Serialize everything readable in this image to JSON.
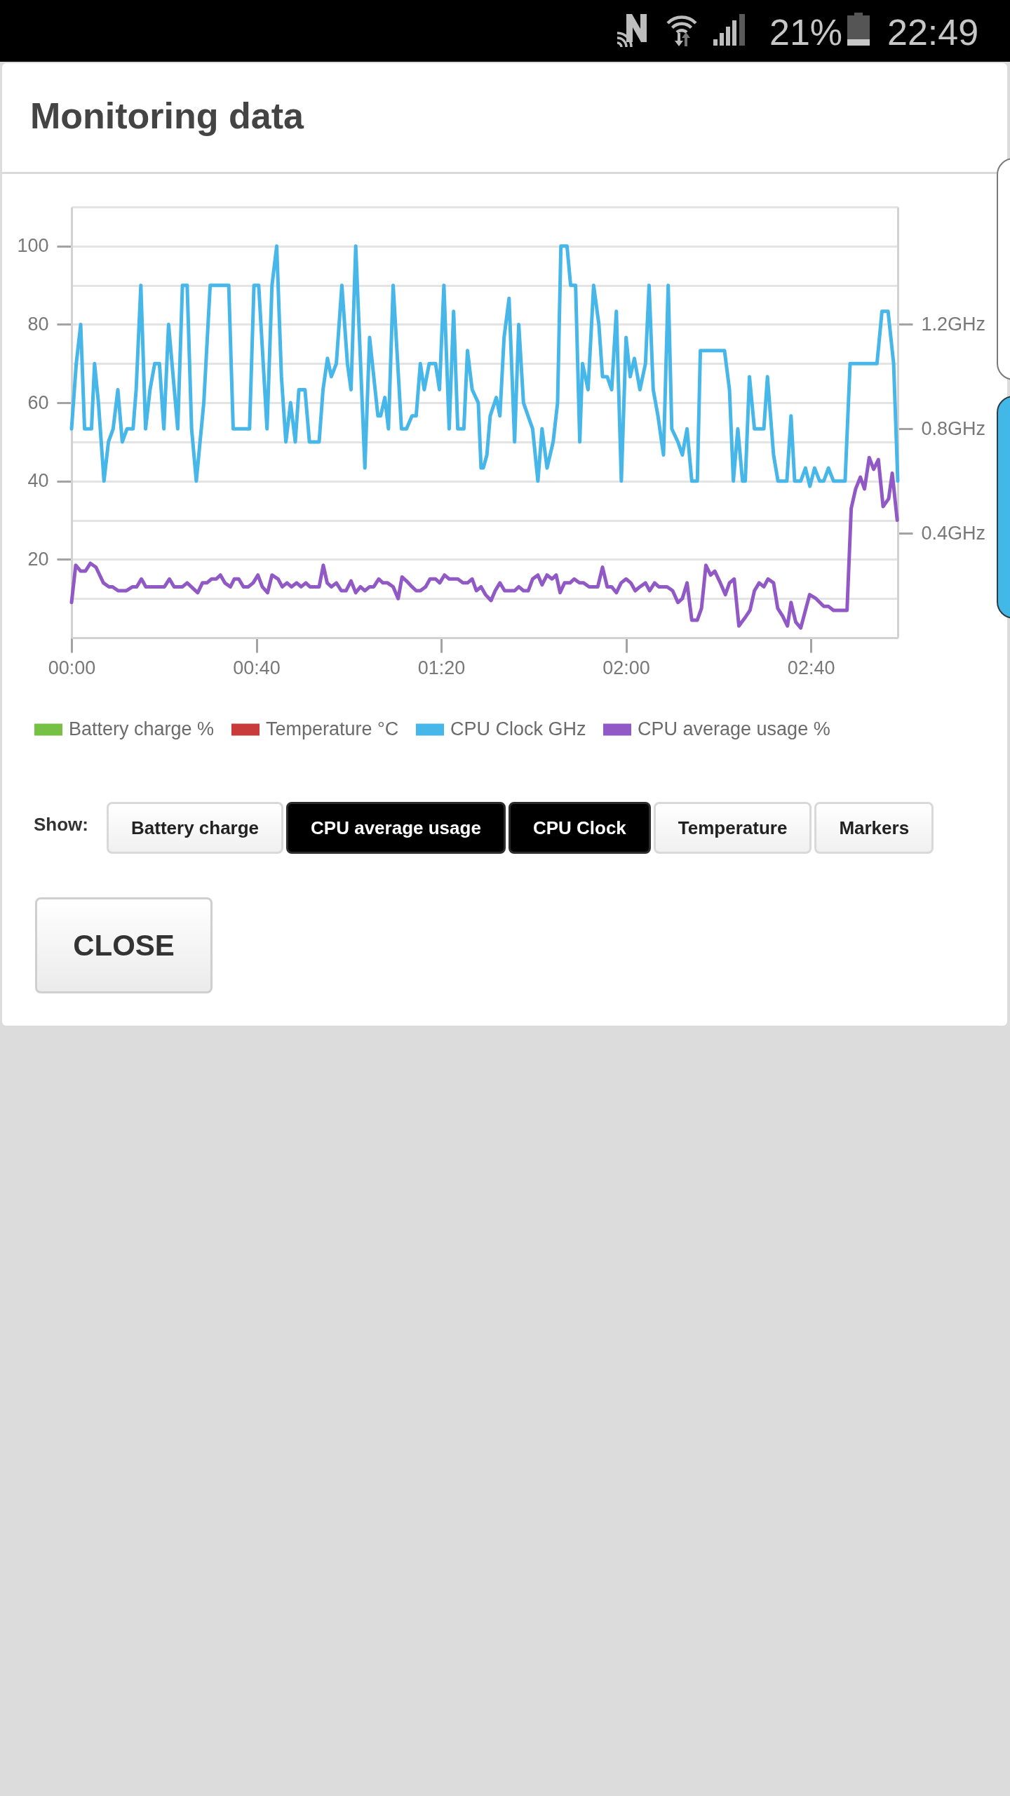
{
  "chart_data": {
    "type": "line",
    "title": "Monitoring data",
    "annotations": [
      "21%",
      "22:49",
      "Show:",
      "Battery charge",
      "CPU average usage",
      "CPU Clock",
      "Temperature",
      "Markers",
      "CLOSE"
    ],
    "xlim": [
      0,
      2.98
    ],
    "xticks": [
      {
        "value": 0,
        "label": "00:00"
      },
      {
        "value": 0.6667,
        "label": "00:40"
      },
      {
        "value": 1.3333,
        "label": "01:20"
      },
      {
        "value": 2,
        "label": "02:00"
      },
      {
        "value": 2.6667,
        "label": "02:40"
      }
    ],
    "ylim": [
      0,
      110
    ],
    "yticks": [
      {
        "value": 10,
        "label": null
      },
      20,
      {
        "value": 30,
        "label": null
      },
      40,
      {
        "value": 50,
        "label": null
      },
      60,
      {
        "value": 70,
        "label": null
      },
      80,
      {
        "value": 90,
        "label": null
      },
      100,
      {
        "value": 110,
        "label": null
      }
    ],
    "y2lim": [
      0,
      1.65
    ],
    "y2ticks": [
      {
        "value": 0.4,
        "label": "0.4GHz"
      },
      {
        "value": 0.8,
        "label": "0.8GHz"
      },
      {
        "value": 1.2,
        "label": "1.2GHz"
      }
    ],
    "grid": "y",
    "legend": "bottom",
    "series": [
      {
        "name": "Battery charge %",
        "color": "#76c043"
      },
      {
        "name": "Temperature °C",
        "color": "#c93a3a"
      },
      {
        "name": "CPU Clock GHz",
        "color": "#47b6e8",
        "axis": "y2",
        "x": [
          0,
          0.017,
          0.033,
          0.047,
          0.072,
          0.083,
          0.097,
          0.117,
          0.133,
          0.15,
          0.167,
          0.183,
          0.2,
          0.222,
          0.233,
          0.25,
          0.267,
          0.283,
          0.3,
          0.317,
          0.333,
          0.35,
          0.383,
          0.4,
          0.417,
          0.433,
          0.45,
          0.477,
          0.5,
          0.567,
          0.583,
          0.642,
          0.658,
          0.675,
          0.705,
          0.723,
          0.74,
          0.757,
          0.773,
          0.79,
          0.807,
          0.82,
          0.842,
          0.858,
          0.893,
          0.907,
          0.923,
          0.937,
          0.955,
          0.975,
          0.995,
          1.008,
          1.025,
          1.058,
          1.075,
          1.105,
          1.115,
          1.13,
          1.143,
          1.16,
          1.19,
          1.208,
          1.228,
          1.243,
          1.258,
          1.272,
          1.29,
          1.313,
          1.327,
          1.343,
          1.362,
          1.378,
          1.393,
          1.415,
          1.428,
          1.445,
          1.467,
          1.477,
          1.485,
          1.498,
          1.51,
          1.532,
          1.545,
          1.56,
          1.578,
          1.598,
          1.613,
          1.63,
          1.663,
          1.682,
          1.697,
          1.715,
          1.737,
          1.753,
          1.765,
          1.787,
          1.8,
          1.818,
          1.833,
          1.843,
          1.863,
          1.883,
          1.902,
          1.915,
          1.932,
          1.948,
          1.965,
          1.983,
          2,
          2.015,
          2.03,
          2.05,
          2.07,
          2.083,
          2.098,
          2.115,
          2.135,
          2.152,
          2.165,
          2.187,
          2.203,
          2.22,
          2.237,
          2.257,
          2.268,
          2.355,
          2.373,
          2.387,
          2.403,
          2.42,
          2.43,
          2.445,
          2.463,
          2.497,
          2.51,
          2.532,
          2.548,
          2.58,
          2.595,
          2.608,
          2.63,
          2.647,
          2.663,
          2.68,
          2.698,
          2.713,
          2.73,
          2.748,
          2.79,
          2.808,
          2.905,
          2.923,
          2.945,
          2.965,
          2.98
        ],
        "values": [
          0.8,
          1.05,
          1.2,
          0.8,
          0.8,
          1.05,
          0.9,
          0.6,
          0.75,
          0.8,
          0.95,
          0.75,
          0.8,
          0.8,
          0.95,
          1.35,
          0.8,
          0.95,
          1.05,
          1.05,
          0.8,
          1.2,
          0.8,
          1.35,
          1.35,
          0.8,
          0.6,
          0.9,
          1.35,
          1.35,
          0.8,
          0.8,
          1.35,
          1.35,
          0.8,
          1.35,
          1.5,
          1.0,
          0.75,
          0.9,
          0.75,
          0.95,
          0.95,
          0.75,
          0.75,
          0.95,
          1.07,
          1.0,
          1.05,
          1.35,
          1.05,
          0.95,
          1.5,
          0.65,
          1.15,
          0.85,
          0.85,
          0.92,
          0.8,
          1.35,
          0.8,
          0.8,
          0.85,
          0.85,
          1.05,
          0.95,
          1.05,
          1.05,
          0.95,
          1.35,
          0.8,
          1.25,
          0.8,
          0.8,
          1.1,
          0.95,
          0.9,
          0.65,
          0.65,
          0.7,
          0.85,
          0.92,
          0.85,
          1.15,
          1.3,
          0.75,
          1.2,
          0.9,
          0.8,
          0.6,
          0.8,
          0.65,
          0.75,
          0.9,
          1.5,
          1.5,
          1.35,
          1.35,
          0.75,
          1.05,
          0.95,
          1.35,
          1.2,
          1.0,
          1.0,
          0.95,
          1.25,
          0.6,
          1.15,
          1.0,
          1.07,
          0.95,
          1.05,
          1.35,
          0.95,
          0.85,
          0.7,
          1.35,
          0.8,
          0.75,
          0.7,
          0.8,
          0.6,
          0.6,
          1.1,
          1.1,
          0.95,
          0.6,
          0.8,
          0.6,
          0.6,
          1.0,
          0.8,
          0.8,
          1.0,
          0.7,
          0.6,
          0.6,
          0.85,
          0.6,
          0.6,
          0.65,
          0.58,
          0.65,
          0.6,
          0.6,
          0.65,
          0.6,
          0.6,
          1.05,
          1.05,
          1.25,
          1.25,
          1.05,
          0.6
        ]
      },
      {
        "name": "CPU average usage %",
        "color": "#9159c6",
        "x": [
          0,
          0.015,
          0.033,
          0.05,
          0.068,
          0.088,
          0.115,
          0.135,
          0.148,
          0.168,
          0.197,
          0.22,
          0.235,
          0.252,
          0.268,
          0.335,
          0.353,
          0.37,
          0.4,
          0.417,
          0.455,
          0.472,
          0.488,
          0.505,
          0.522,
          0.537,
          0.553,
          0.573,
          0.587,
          0.603,
          0.62,
          0.637,
          0.655,
          0.672,
          0.688,
          0.707,
          0.723,
          0.745,
          0.76,
          0.777,
          0.793,
          0.812,
          0.828,
          0.845,
          0.86,
          0.893,
          0.908,
          0.922,
          0.937,
          0.955,
          0.973,
          0.99,
          1.008,
          1.025,
          1.042,
          1.058,
          1.075,
          1.09,
          1.108,
          1.123,
          1.14,
          1.16,
          1.178,
          1.192,
          1.208,
          1.228,
          1.243,
          1.258,
          1.277,
          1.293,
          1.313,
          1.328,
          1.345,
          1.362,
          1.393,
          1.412,
          1.428,
          1.445,
          1.46,
          1.477,
          1.493,
          1.513,
          1.528,
          1.545,
          1.562,
          1.598,
          1.613,
          1.63,
          1.647,
          1.663,
          1.682,
          1.697,
          1.715,
          1.733,
          1.748,
          1.762,
          1.778,
          1.798,
          1.813,
          1.832,
          1.847,
          1.867,
          1.898,
          1.915,
          1.932,
          1.948,
          1.965,
          1.982,
          2,
          2.017,
          2.033,
          2.05,
          2.07,
          2.085,
          2.103,
          2.118,
          2.148,
          2.168,
          2.187,
          2.203,
          2.22,
          2.237,
          2.257,
          2.272,
          2.288,
          2.305,
          2.32,
          2.34,
          2.358,
          2.373,
          2.39,
          2.407,
          2.428,
          2.447,
          2.463,
          2.48,
          2.497,
          2.512,
          2.532,
          2.547,
          2.565,
          2.582,
          2.595,
          2.612,
          2.63,
          2.662,
          2.685,
          2.713,
          2.73,
          2.748,
          2.797,
          2.812,
          2.828,
          2.845,
          2.86,
          2.877,
          2.893,
          2.91,
          2.927,
          2.947,
          2.96,
          2.978
        ],
        "values": [
          9,
          18.5,
          17,
          17,
          19,
          18,
          14,
          13,
          13,
          12,
          12,
          13,
          13,
          15,
          13,
          13,
          15,
          13,
          13,
          14,
          11.5,
          14,
          14,
          15,
          15,
          16,
          14,
          13,
          15,
          15,
          13,
          13,
          14,
          16,
          13,
          11.5,
          16,
          15,
          13,
          14,
          13,
          14,
          13,
          14,
          13,
          13,
          18.5,
          14,
          13,
          14,
          12,
          12,
          14.5,
          11.5,
          13,
          12,
          13,
          13,
          15,
          14,
          14,
          13,
          10,
          15.5,
          14.5,
          13,
          12,
          12,
          13,
          15,
          15,
          14,
          16,
          15,
          15,
          14,
          14,
          15,
          12,
          13,
          11,
          9.5,
          12,
          14,
          12,
          12,
          13,
          12,
          12,
          15,
          16,
          13.5,
          16,
          15,
          16,
          11.5,
          14,
          14,
          15,
          14,
          14,
          13,
          13,
          18,
          13,
          13,
          11.5,
          14,
          15,
          14,
          12,
          13,
          14,
          12,
          14,
          13,
          13,
          12,
          9,
          10,
          14,
          4.5,
          4.5,
          7.5,
          18.5,
          16,
          17,
          14,
          11,
          14,
          15,
          3,
          5,
          7,
          12,
          14,
          13,
          15,
          14,
          7.5,
          5.5,
          3,
          9,
          4,
          2.5,
          11,
          10,
          8,
          8,
          7,
          7,
          33,
          38,
          41,
          38,
          46,
          43,
          45.5,
          33.5,
          35.5,
          42,
          30
        ]
      }
    ]
  }
}
